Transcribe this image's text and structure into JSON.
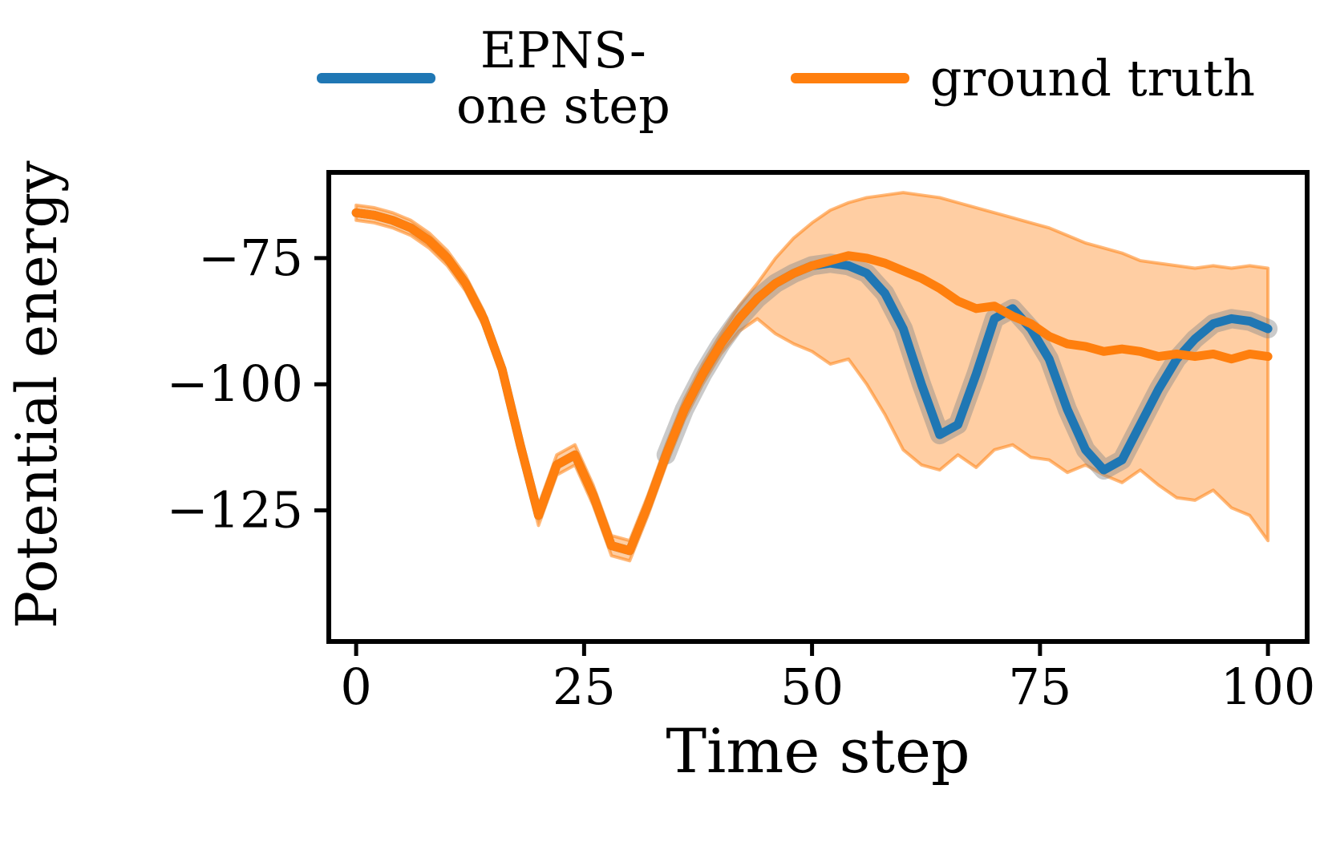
{
  "legend": {
    "entries": [
      {
        "line1": "EPNS-",
        "line2": "one step"
      },
      {
        "line1": "ground truth"
      }
    ]
  },
  "chart_data": {
    "type": "line",
    "title": "",
    "xlabel": "Time step",
    "ylabel": "Potential energy",
    "xlim": [
      -3,
      104.3
    ],
    "ylim": [
      -151,
      -58
    ],
    "grid": false,
    "legend_position": "top",
    "x_ticks": [
      0,
      25,
      50,
      75,
      100
    ],
    "x_tick_labels": [
      "0",
      "25",
      "50",
      "75",
      "100"
    ],
    "y_ticks": [
      -75,
      -100,
      -125
    ],
    "y_tick_labels": [
      "−75",
      "−100",
      "−125"
    ],
    "x": [
      0,
      2,
      4,
      6,
      8,
      10,
      12,
      14,
      16,
      18,
      20,
      22,
      24,
      26,
      28,
      30,
      32,
      34,
      36,
      38,
      40,
      42,
      44,
      46,
      48,
      50,
      52,
      54,
      56,
      58,
      60,
      62,
      64,
      66,
      68,
      70,
      72,
      74,
      76,
      78,
      80,
      82,
      84,
      86,
      88,
      90,
      92,
      94,
      96,
      98,
      100
    ],
    "series": [
      {
        "name": "EPNS-one step",
        "color": "#1f77b4",
        "values": [
          -66,
          -66.5,
          -67.5,
          -69,
          -71.5,
          -75,
          -80,
          -87,
          -97,
          -112,
          -126,
          -116,
          -114,
          -122,
          -132,
          -133,
          -124,
          -114,
          -105,
          -98,
          -92,
          -87,
          -83,
          -80,
          -78,
          -76.5,
          -76,
          -76.5,
          -78,
          -82,
          -89,
          -100,
          -110,
          -108,
          -98,
          -87,
          -85,
          -89,
          -95,
          -105,
          -113,
          -117,
          -115,
          -108,
          -101,
          -95,
          -91,
          -88,
          -87,
          -87.5,
          -89
        ]
      },
      {
        "name": "ground truth",
        "color": "#ff7f0e",
        "values": [
          -66,
          -66.5,
          -67.5,
          -69,
          -71.5,
          -75,
          -80,
          -87,
          -97,
          -112,
          -126,
          -116,
          -114,
          -122,
          -132,
          -133,
          -124,
          -114,
          -105,
          -98,
          -92,
          -87,
          -83,
          -80,
          -78,
          -76.5,
          -75.5,
          -74.5,
          -75,
          -76,
          -77.5,
          -79,
          -81,
          -83.5,
          -85,
          -84.5,
          -86.5,
          -88,
          -90.5,
          -92,
          -92.5,
          -93.5,
          -93,
          -93.5,
          -94.5,
          -94,
          -94.5,
          -94,
          -95,
          -94,
          -94.5
        ],
        "band_upper": [
          -64.5,
          -65,
          -66,
          -67.5,
          -70,
          -73.5,
          -78.5,
          -85.5,
          -95.5,
          -110,
          -124,
          -114,
          -112,
          -120,
          -130,
          -131,
          -122,
          -112,
          -103,
          -96,
          -90,
          -84.5,
          -80,
          -75,
          -71,
          -68,
          -65.5,
          -64,
          -63,
          -62.5,
          -62,
          -62.5,
          -63,
          -64,
          -65,
          -66,
          -67,
          -68,
          -69,
          -70.5,
          -72,
          -73,
          -74,
          -75.5,
          -76,
          -76.5,
          -77,
          -76.5,
          -77,
          -76.5,
          -77
        ],
        "band_lower": [
          -67.5,
          -68,
          -69,
          -70.5,
          -73,
          -76.5,
          -81.5,
          -88.5,
          -98.5,
          -114,
          -128,
          -118,
          -116,
          -124,
          -134,
          -135,
          -126,
          -116,
          -107,
          -100,
          -94,
          -89.5,
          -87,
          -90,
          -92,
          -93.5,
          -96,
          -95,
          -100,
          -106,
          -113,
          -116,
          -117,
          -114,
          -116.5,
          -113,
          -112,
          -114.5,
          -115,
          -117.5,
          -116,
          -118,
          -119.5,
          -117,
          -120,
          -122.5,
          -123,
          -121,
          -124.5,
          -126,
          -131
        ]
      }
    ]
  }
}
